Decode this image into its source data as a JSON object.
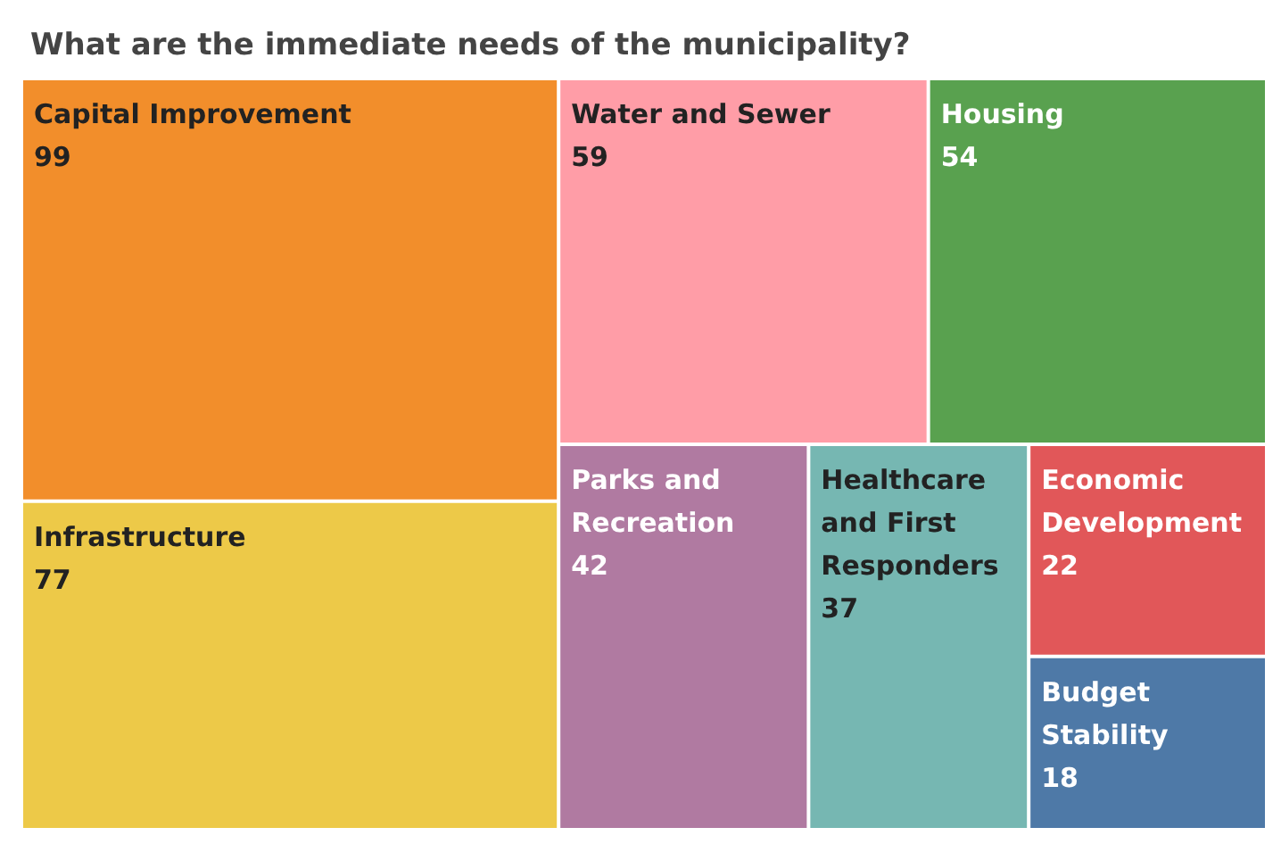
{
  "chart_data": {
    "type": "other",
    "title": "What are the immediate needs of the municipality?",
    "categories": [
      "Capital Improvement",
      "Infrastructure",
      "Water and Sewer",
      "Housing",
      "Parks and Recreation",
      "Healthcare and First Responders",
      "Economic Development",
      "Budget Stability"
    ],
    "values": [
      99,
      77,
      59,
      54,
      42,
      37,
      22,
      18
    ],
    "colors": [
      "#f28e2b",
      "#edc948",
      "#ff9da7",
      "#59a14f",
      "#b07aa1",
      "#76b7b2",
      "#e15759",
      "#4e79a7"
    ],
    "data_labels": true
  }
}
